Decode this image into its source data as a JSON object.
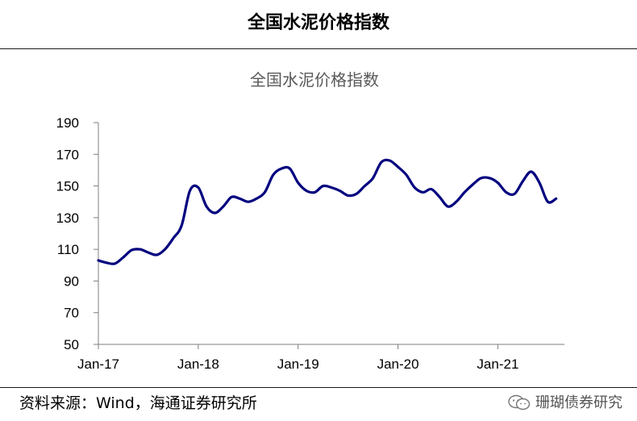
{
  "header": {
    "title": "全国水泥价格指数"
  },
  "footer": {
    "source": "资料来源：Wind，海通证券研究所",
    "watermark": "珊瑚债券研究",
    "watermark_icon": "wechat-icon"
  },
  "colors": {
    "series": "#00007f",
    "axis": "#7f7f7f",
    "text": "#000000",
    "chart_title": "#595959"
  },
  "chart_data": {
    "type": "line",
    "title": "全国水泥价格指数",
    "xlabel": "",
    "ylabel": "",
    "ylim": [
      50,
      190
    ],
    "yticks": [
      50,
      70,
      90,
      110,
      130,
      150,
      170,
      190
    ],
    "xlim": [
      "2017-01",
      "2021-08"
    ],
    "xticks": [
      {
        "label": "Jan-17",
        "date": "2017-01"
      },
      {
        "label": "Jan-18",
        "date": "2018-01"
      },
      {
        "label": "Jan-19",
        "date": "2019-01"
      },
      {
        "label": "Jan-20",
        "date": "2020-01"
      },
      {
        "label": "Jan-21",
        "date": "2021-01"
      }
    ],
    "grid": false,
    "legend": "none",
    "series": [
      {
        "x": [
          "2017-01",
          "2017-02",
          "2017-03",
          "2017-04",
          "2017-05",
          "2017-06",
          "2017-07",
          "2017-08",
          "2017-09",
          "2017-10",
          "2017-11",
          "2017-12",
          "2018-01",
          "2018-02",
          "2018-03",
          "2018-04",
          "2018-05",
          "2018-06",
          "2018-07",
          "2018-08",
          "2018-09",
          "2018-10",
          "2018-11",
          "2018-12",
          "2019-01",
          "2019-02",
          "2019-03",
          "2019-04",
          "2019-05",
          "2019-06",
          "2019-07",
          "2019-08",
          "2019-09",
          "2019-10",
          "2019-11",
          "2019-12",
          "2020-01",
          "2020-02",
          "2020-03",
          "2020-04",
          "2020-05",
          "2020-06",
          "2020-07",
          "2020-08",
          "2020-09",
          "2020-10",
          "2020-11",
          "2020-12",
          "2021-01",
          "2021-02",
          "2021-03",
          "2021-04",
          "2021-05",
          "2021-06",
          "2021-07",
          "2021-08"
        ],
        "values": [
          103,
          101.5,
          101,
          105,
          109.5,
          110,
          108,
          106.5,
          110,
          117,
          125,
          147,
          149,
          137,
          133,
          137,
          143,
          142,
          140,
          142,
          146,
          157,
          161,
          161,
          152,
          147,
          146,
          150,
          149,
          147,
          144,
          145,
          150,
          155,
          165,
          166,
          162,
          157,
          149,
          146,
          148,
          143,
          137,
          140,
          146,
          151,
          155,
          155,
          152,
          146,
          145,
          153,
          159,
          152,
          140,
          142
        ]
      }
    ]
  }
}
